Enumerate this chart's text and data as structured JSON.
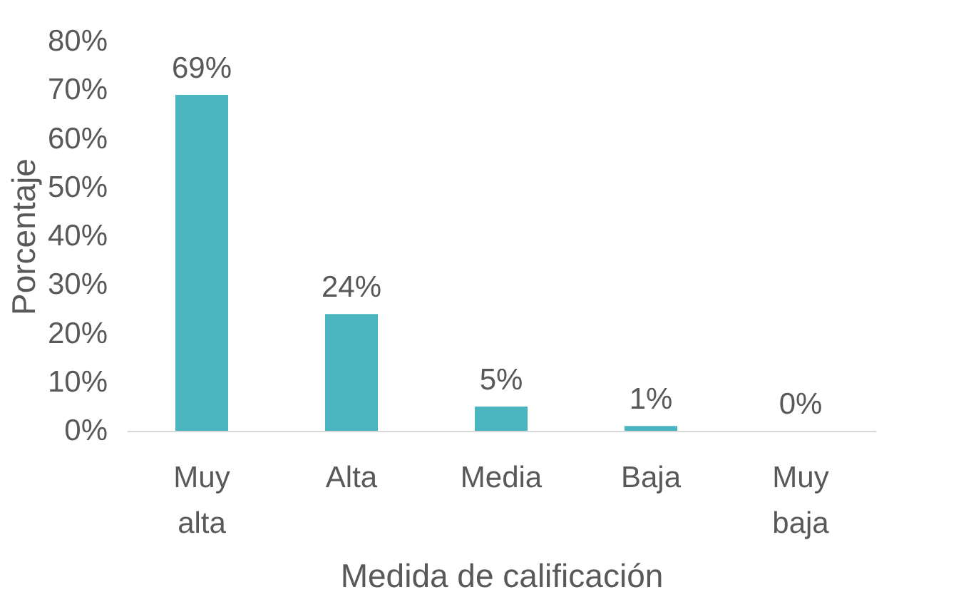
{
  "chart_data": {
    "type": "bar",
    "xlabel": "Medida de calificación",
    "ylabel": "Porcentaje",
    "categories": [
      "Muy alta",
      "Alta",
      "Media",
      "Baja",
      "Muy baja"
    ],
    "values": [
      69,
      24,
      5,
      1,
      0
    ],
    "color": "#4bb5bf",
    "ylim": [
      0,
      80
    ],
    "yticks": [
      {
        "value": 0,
        "label": "0%"
      },
      {
        "value": 10,
        "label": "10%"
      },
      {
        "value": 20,
        "label": "20%"
      },
      {
        "value": 30,
        "label": "30%"
      },
      {
        "value": 40,
        "label": "40%"
      },
      {
        "value": 50,
        "label": "50%"
      },
      {
        "value": 60,
        "label": "60%"
      },
      {
        "value": 70,
        "label": "70%"
      },
      {
        "value": 80,
        "label": "80%"
      }
    ],
    "value_labels": [
      "69%",
      "24%",
      "5%",
      "1%",
      "0%"
    ],
    "grid": false
  }
}
